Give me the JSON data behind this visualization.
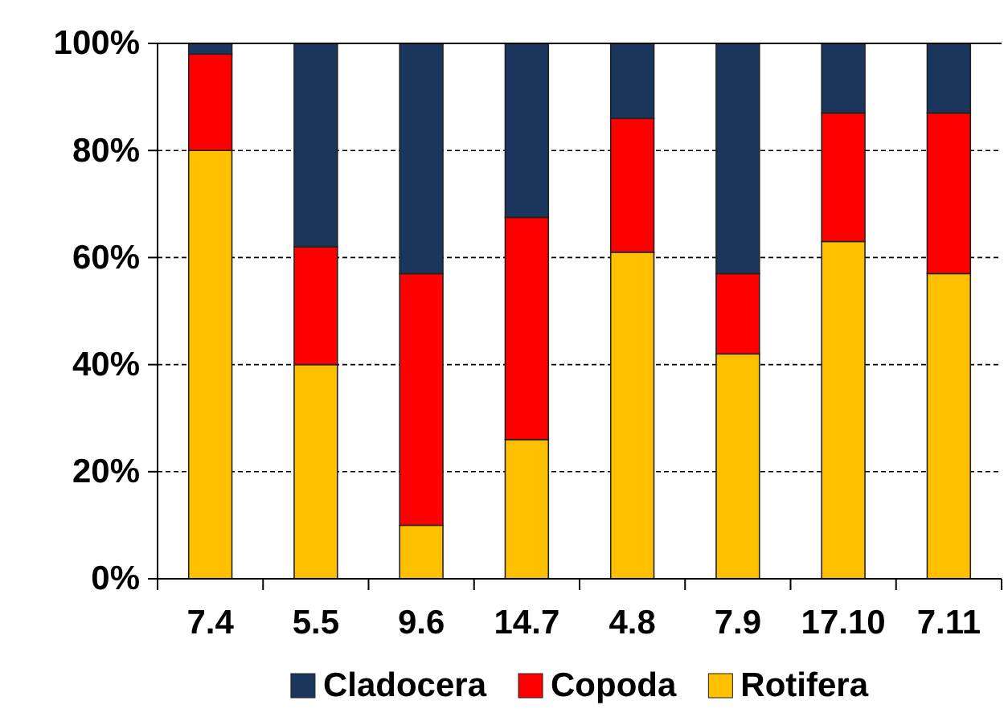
{
  "chart_data": {
    "type": "bar",
    "stacked": true,
    "categories": [
      "7.4",
      "5.5",
      "9.6",
      "14.7",
      "4.8",
      "7.9",
      "17.10",
      "7.11"
    ],
    "series": [
      {
        "name": "Rotifera",
        "color": "#ffc000",
        "values": [
          80,
          40,
          10,
          26,
          61,
          42,
          63,
          57
        ]
      },
      {
        "name": "Copoda",
        "color": "#ff0000",
        "values": [
          18,
          22,
          47,
          41.5,
          25,
          15,
          24,
          30
        ]
      },
      {
        "name": "Cladocera",
        "color": "#1b365d",
        "values": [
          2,
          38,
          43,
          32.5,
          14,
          43,
          13,
          13
        ]
      }
    ],
    "ylim": [
      0,
      100
    ],
    "yticks": [
      {
        "value": 0,
        "label": "0%"
      },
      {
        "value": 20,
        "label": "20%"
      },
      {
        "value": 40,
        "label": "40%"
      },
      {
        "value": 60,
        "label": "60%"
      },
      {
        "value": 80,
        "label": "80%"
      },
      {
        "value": 100,
        "label": "100%"
      }
    ],
    "grid": "y",
    "legend": "bottom"
  }
}
